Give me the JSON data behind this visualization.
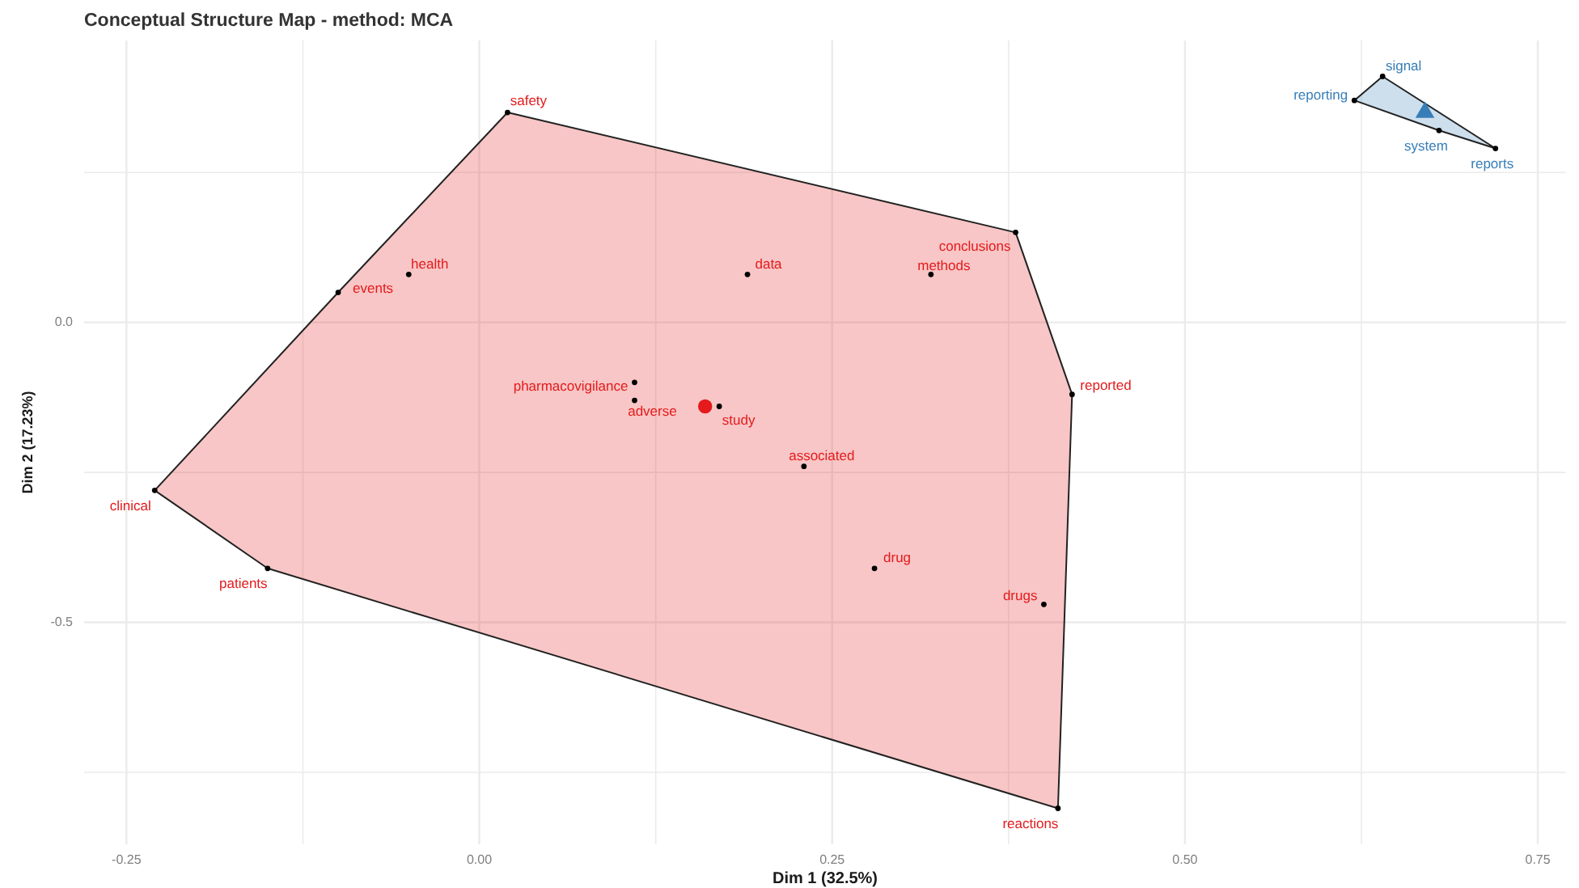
{
  "chart_data": {
    "type": "scatter",
    "title": "Conceptual Structure Map - method: MCA",
    "xlabel": "Dim 1 (32.5%)",
    "ylabel": "Dim 2 (17.23%)",
    "xlim": [
      -0.28,
      0.77
    ],
    "ylim": [
      -0.87,
      0.47
    ],
    "xticks": [
      -0.25,
      {
        "value": -0.125,
        "label": null
      },
      {
        "value": 0,
        "label": "0.00"
      },
      {
        "value": 0.125,
        "label": null
      },
      0.25,
      {
        "value": 0.375,
        "label": null
      },
      {
        "value": 0.5,
        "label": "0.50"
      },
      {
        "value": 0.625,
        "label": null
      },
      0.75
    ],
    "yticks": [
      {
        "value": -0.75,
        "label": null
      },
      -0.5,
      {
        "value": -0.25,
        "label": null
      },
      {
        "value": 0,
        "label": "0.0"
      },
      {
        "value": 0.25,
        "label": null
      }
    ],
    "grid": true,
    "series": [
      {
        "color": "#e41a1c",
        "marker": "circle",
        "x": [
          0.16
        ],
        "values": [
          -0.14
        ]
      },
      {
        "color": "#000000",
        "marker": "circle",
        "x": [
          0.02,
          -0.05,
          -0.1,
          0.19,
          0.38,
          0.32,
          0.11,
          0.11,
          0.17,
          0.42,
          0.23,
          -0.23,
          -0.15,
          0.28,
          0.4,
          0.41
        ],
        "values": [
          0.35,
          0.08,
          0.05,
          0.08,
          0.15,
          0.08,
          -0.1,
          -0.13,
          -0.14,
          -0.12,
          -0.24,
          -0.28,
          -0.41,
          -0.41,
          -0.47,
          -0.81
        ],
        "value_labels": [
          "safety",
          "health",
          "events",
          "data",
          "conclusions",
          "methods",
          "pharmacovigilance",
          "adverse",
          "study",
          "reported",
          "associated",
          "clinical",
          "patients",
          "drug",
          "drugs",
          "reactions"
        ]
      },
      {
        "color": "#377eb8",
        "marker": "triangle",
        "x": [
          0.67
        ],
        "values": [
          0.35
        ]
      },
      {
        "color": "#000000",
        "marker": "circle",
        "x": [
          0.64,
          0.62,
          0.68,
          0.72
        ],
        "values": [
          0.41,
          0.37,
          0.32,
          0.29
        ],
        "value_labels": [
          "signal",
          "reporting",
          "system",
          "reports"
        ]
      }
    ]
  }
}
